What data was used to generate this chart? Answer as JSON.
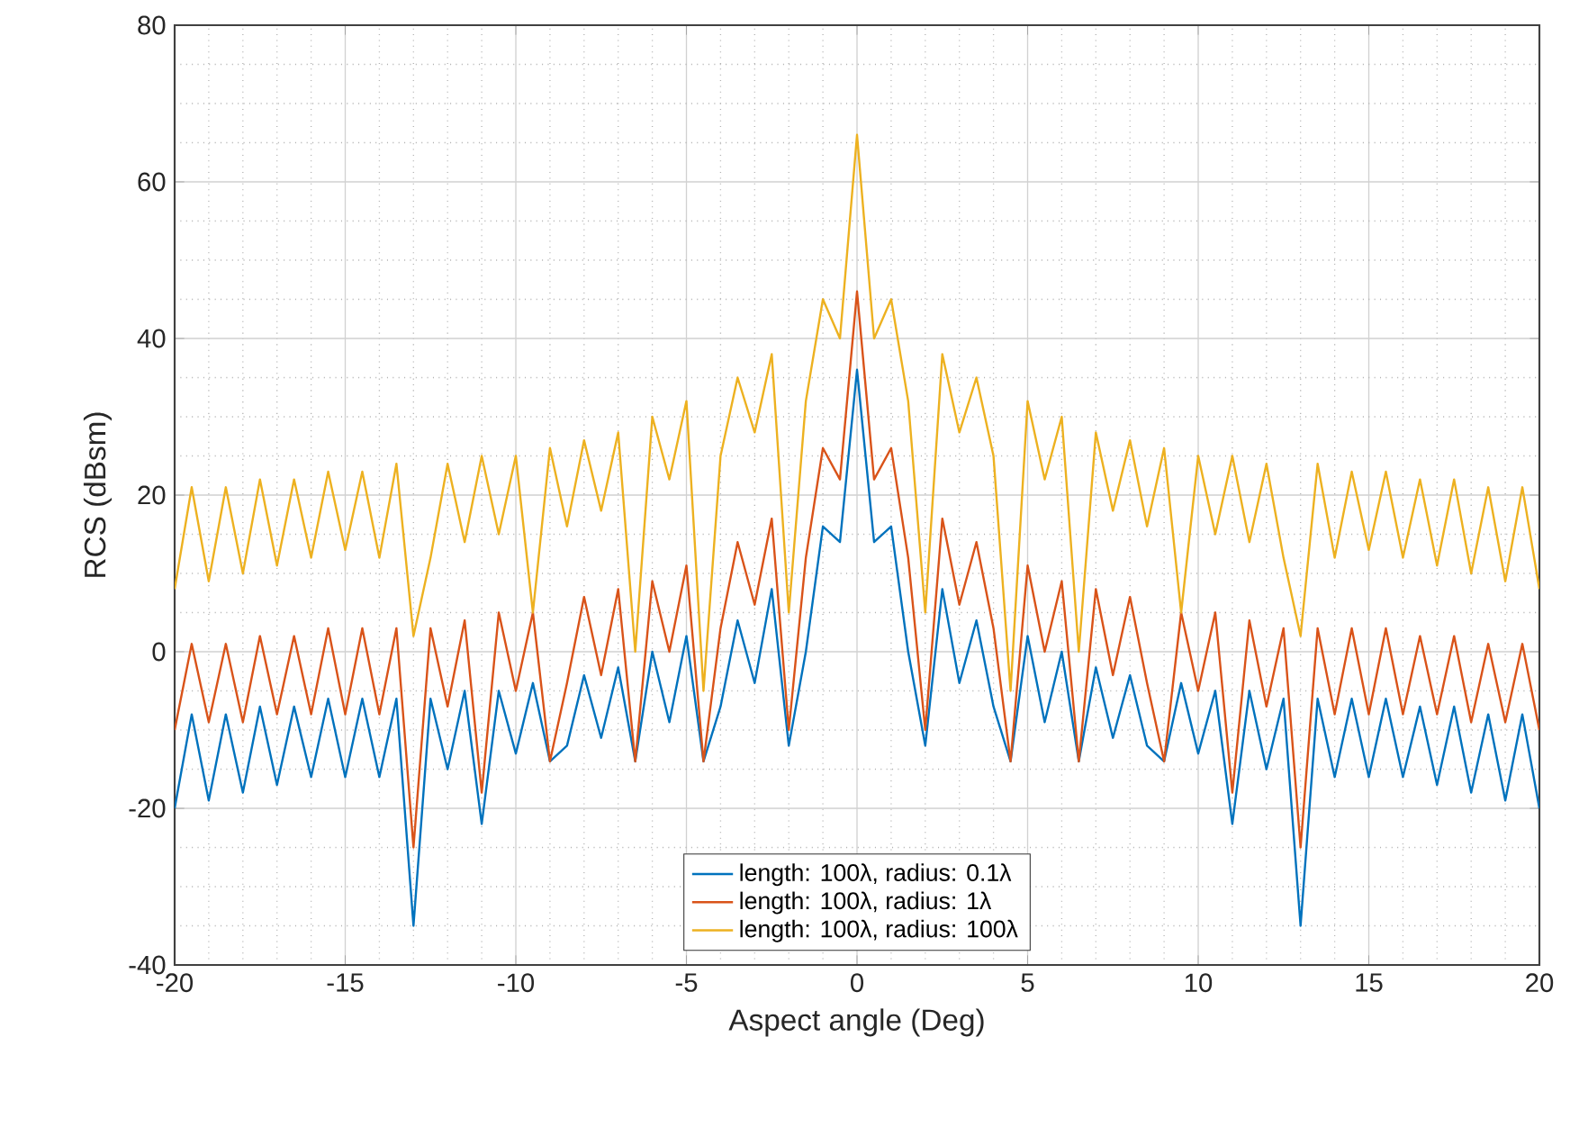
{
  "chart_data": {
    "type": "line",
    "xlabel": "Aspect angle (Deg)",
    "ylabel": "RCS (dBsm)",
    "xlim": [
      -20,
      20
    ],
    "ylim": [
      -40,
      80
    ],
    "xticks": [
      -20,
      -15,
      -10,
      -5,
      0,
      5,
      10,
      15,
      20
    ],
    "yticks": [
      -40,
      -20,
      0,
      20,
      40,
      60,
      80
    ],
    "grid": true,
    "legend": "bottom",
    "line_style": "solid",
    "marker": "none",
    "x": [
      -20,
      -19.5,
      -19,
      -18.5,
      -18,
      -17.5,
      -17,
      -16.5,
      -16,
      -15.5,
      -15,
      -14.5,
      -14,
      -13.5,
      -13,
      -12.5,
      -12,
      -11.5,
      -11,
      -10.5,
      -10,
      -9.5,
      -9,
      -8.5,
      -8,
      -7.5,
      -7,
      -6.5,
      -6,
      -5.5,
      -5,
      -4.5,
      -4,
      -3.5,
      -3,
      -2.5,
      -2,
      -1.5,
      -1,
      -0.5,
      0,
      0.5,
      1,
      1.5,
      2,
      2.5,
      3,
      3.5,
      4,
      4.5,
      5,
      5.5,
      6,
      6.5,
      7,
      7.5,
      8,
      8.5,
      9,
      9.5,
      10,
      10.5,
      11,
      11.5,
      12,
      12.5,
      13,
      13.5,
      14,
      14.5,
      15,
      15.5,
      16,
      16.5,
      17,
      17.5,
      18,
      18.5,
      19,
      19.5,
      20
    ],
    "series": [
      {
        "name": "length: 100λ,   radius: 0.1λ",
        "color": "#0072bd",
        "values": [
          -20,
          -8,
          -19,
          -8,
          -18,
          -7,
          -17,
          -7,
          -16,
          -6,
          -16,
          -6,
          -16,
          -6,
          -35,
          -6,
          -15,
          -5,
          -22,
          -5,
          -13,
          -4,
          -14,
          -12,
          -3,
          -11,
          -2,
          -14,
          0,
          -9,
          2,
          -14,
          -7,
          4,
          -4,
          8,
          -12,
          0,
          16,
          14,
          36,
          14,
          16,
          0,
          -12,
          8,
          -4,
          4,
          -7,
          -14,
          2,
          -9,
          0,
          -14,
          -2,
          -11,
          -3,
          -12,
          -14,
          -4,
          -13,
          -5,
          -22,
          -5,
          -15,
          -6,
          -35,
          -6,
          -16,
          -6,
          -16,
          -6,
          -16,
          -7,
          -17,
          -7,
          -18,
          -8,
          -19,
          -8,
          -20
        ]
      },
      {
        "name": "length: 100λ,   radius: 1λ",
        "color": "#d95319",
        "values": [
          -10,
          1,
          -9,
          1,
          -9,
          2,
          -8,
          2,
          -8,
          3,
          -8,
          3,
          -8,
          3,
          -25,
          3,
          -7,
          4,
          -18,
          5,
          -5,
          5,
          -14,
          -4,
          7,
          -3,
          8,
          -14,
          9,
          0,
          11,
          -14,
          3,
          14,
          6,
          17,
          -10,
          12,
          26,
          22,
          46,
          22,
          26,
          12,
          -10,
          17,
          6,
          14,
          3,
          -14,
          11,
          0,
          9,
          -14,
          8,
          -3,
          7,
          -4,
          -14,
          5,
          -5,
          5,
          -18,
          4,
          -7,
          3,
          -25,
          3,
          -8,
          3,
          -8,
          3,
          -8,
          2,
          -8,
          2,
          -9,
          1,
          -9,
          1,
          -10
        ]
      },
      {
        "name": "length: 100λ,   radius: 100λ",
        "color": "#edb120",
        "values": [
          8,
          21,
          9,
          21,
          10,
          22,
          11,
          22,
          12,
          23,
          13,
          23,
          12,
          24,
          2,
          12,
          24,
          14,
          25,
          15,
          25,
          5,
          26,
          16,
          27,
          18,
          28,
          0,
          30,
          22,
          32,
          -5,
          25,
          35,
          28,
          38,
          5,
          32,
          45,
          40,
          66,
          40,
          45,
          32,
          5,
          38,
          28,
          35,
          25,
          -5,
          32,
          22,
          30,
          0,
          28,
          18,
          27,
          16,
          26,
          5,
          25,
          15,
          25,
          14,
          24,
          12,
          2,
          24,
          12,
          23,
          13,
          23,
          12,
          22,
          11,
          22,
          10,
          21,
          9,
          21,
          8
        ]
      }
    ]
  }
}
